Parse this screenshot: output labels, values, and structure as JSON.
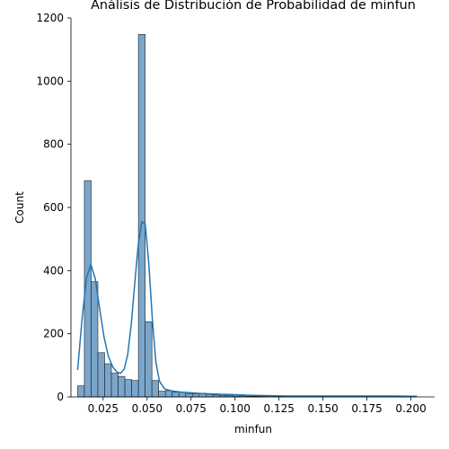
{
  "chart_data": {
    "type": "bar",
    "title": "Análisis de Distribución de Probabilidad de minfun",
    "xlabel": "minfun",
    "ylabel": "Count",
    "xlim": [
      0.0067,
      0.2135
    ],
    "ylim": [
      0,
      1200
    ],
    "grid": false,
    "legend": "none",
    "x_ticks": [
      0.025,
      0.05,
      0.075,
      0.1,
      0.125,
      0.15,
      0.175,
      0.2
    ],
    "x_tick_labels": [
      "0.025",
      "0.050",
      "0.075",
      "0.100",
      "0.125",
      "0.150",
      "0.175",
      "0.200"
    ],
    "y_ticks": [
      0,
      200,
      400,
      600,
      800,
      1000,
      1200
    ],
    "y_tick_labels": [
      "0",
      "200",
      "400",
      "600",
      "800",
      "1000",
      "1200"
    ],
    "colors": {
      "bar_fill": "#7aa6cc",
      "bar_edge": "#1f1f1f",
      "kde_line": "#1f77b4"
    },
    "bin_start": 0.0105,
    "bin_width": 0.00384,
    "bar_counts": [
      35,
      685,
      365,
      140,
      105,
      75,
      65,
      55,
      52,
      1148,
      238,
      52,
      18,
      20,
      15,
      15,
      10,
      10,
      12,
      8,
      6,
      5,
      5,
      3,
      3,
      2,
      2,
      2,
      1,
      1,
      1,
      1,
      1,
      2,
      2,
      2,
      1,
      1,
      1,
      1,
      1,
      1,
      2,
      2,
      1,
      1,
      1,
      1,
      1,
      1
    ],
    "kde": {
      "x": [
        0.0105,
        0.013,
        0.0155,
        0.018,
        0.0205,
        0.023,
        0.0255,
        0.028,
        0.0305,
        0.033,
        0.035,
        0.037,
        0.039,
        0.041,
        0.043,
        0.045,
        0.047,
        0.049,
        0.051,
        0.053,
        0.055,
        0.057,
        0.06,
        0.065,
        0.07,
        0.075,
        0.08,
        0.09,
        0.1,
        0.11,
        0.12,
        0.13,
        0.14,
        0.15,
        0.16,
        0.17,
        0.18,
        0.19,
        0.2,
        0.2035
      ],
      "y": [
        85,
        245,
        375,
        420,
        375,
        280,
        190,
        128,
        95,
        78,
        75,
        88,
        135,
        230,
        360,
        485,
        555,
        545,
        420,
        245,
        110,
        50,
        25,
        18,
        15,
        13,
        11,
        9,
        7,
        5,
        4,
        3,
        3,
        3,
        3,
        3,
        3,
        3,
        2,
        2
      ]
    }
  }
}
